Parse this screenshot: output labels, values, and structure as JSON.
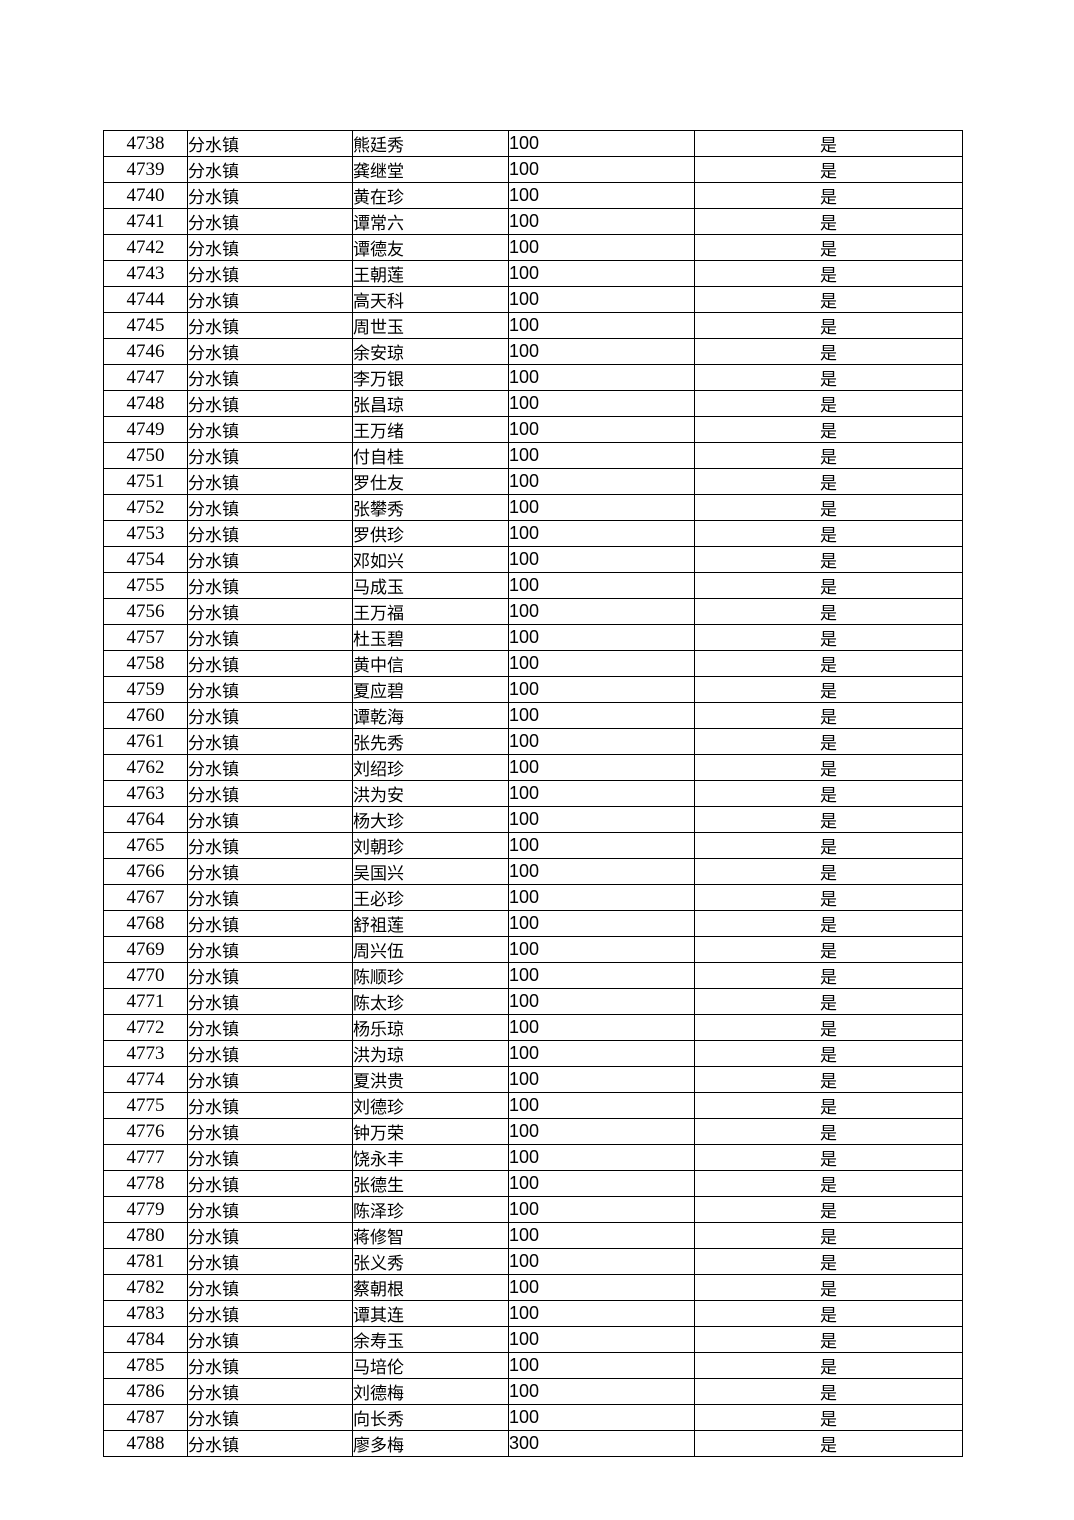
{
  "page": {
    "background_color": "#ffffff",
    "border_color": "#000000",
    "text_color": "#000000"
  },
  "table": {
    "rows": [
      {
        "id": "4738",
        "town": "分水镇",
        "name": "熊廷秀",
        "amount": "100",
        "confirmed": "是"
      },
      {
        "id": "4739",
        "town": "分水镇",
        "name": "龚继堂",
        "amount": "100",
        "confirmed": "是"
      },
      {
        "id": "4740",
        "town": "分水镇",
        "name": "黄在珍",
        "amount": "100",
        "confirmed": "是"
      },
      {
        "id": "4741",
        "town": "分水镇",
        "name": "谭常六",
        "amount": "100",
        "confirmed": "是"
      },
      {
        "id": "4742",
        "town": "分水镇",
        "name": "谭德友",
        "amount": "100",
        "confirmed": "是"
      },
      {
        "id": "4743",
        "town": "分水镇",
        "name": "王朝莲",
        "amount": "100",
        "confirmed": "是"
      },
      {
        "id": "4744",
        "town": "分水镇",
        "name": "高天科",
        "amount": "100",
        "confirmed": "是"
      },
      {
        "id": "4745",
        "town": "分水镇",
        "name": "周世玉",
        "amount": "100",
        "confirmed": "是"
      },
      {
        "id": "4746",
        "town": "分水镇",
        "name": "余安琼",
        "amount": "100",
        "confirmed": "是"
      },
      {
        "id": "4747",
        "town": "分水镇",
        "name": "李万银",
        "amount": "100",
        "confirmed": "是"
      },
      {
        "id": "4748",
        "town": "分水镇",
        "name": "张昌琼",
        "amount": "100",
        "confirmed": "是"
      },
      {
        "id": "4749",
        "town": "分水镇",
        "name": "王万绪",
        "amount": "100",
        "confirmed": "是"
      },
      {
        "id": "4750",
        "town": "分水镇",
        "name": "付自桂",
        "amount": "100",
        "confirmed": "是"
      },
      {
        "id": "4751",
        "town": "分水镇",
        "name": "罗仕友",
        "amount": "100",
        "confirmed": "是"
      },
      {
        "id": "4752",
        "town": "分水镇",
        "name": "张攀秀",
        "amount": "100",
        "confirmed": "是"
      },
      {
        "id": "4753",
        "town": "分水镇",
        "name": "罗供珍",
        "amount": "100",
        "confirmed": "是"
      },
      {
        "id": "4754",
        "town": "分水镇",
        "name": "邓如兴",
        "amount": "100",
        "confirmed": "是"
      },
      {
        "id": "4755",
        "town": "分水镇",
        "name": "马成玉",
        "amount": "100",
        "confirmed": "是"
      },
      {
        "id": "4756",
        "town": "分水镇",
        "name": "王万福",
        "amount": "100",
        "confirmed": "是"
      },
      {
        "id": "4757",
        "town": "分水镇",
        "name": "杜玉碧",
        "amount": "100",
        "confirmed": "是"
      },
      {
        "id": "4758",
        "town": "分水镇",
        "name": "黄中信",
        "amount": "100",
        "confirmed": "是"
      },
      {
        "id": "4759",
        "town": "分水镇",
        "name": "夏应碧",
        "amount": "100",
        "confirmed": "是"
      },
      {
        "id": "4760",
        "town": "分水镇",
        "name": "谭乾海",
        "amount": "100",
        "confirmed": "是"
      },
      {
        "id": "4761",
        "town": "分水镇",
        "name": "张先秀",
        "amount": "100",
        "confirmed": "是"
      },
      {
        "id": "4762",
        "town": "分水镇",
        "name": "刘绍珍",
        "amount": "100",
        "confirmed": "是"
      },
      {
        "id": "4763",
        "town": "分水镇",
        "name": "洪为安",
        "amount": "100",
        "confirmed": "是"
      },
      {
        "id": "4764",
        "town": "分水镇",
        "name": "杨大珍",
        "amount": "100",
        "confirmed": "是"
      },
      {
        "id": "4765",
        "town": "分水镇",
        "name": "刘朝珍",
        "amount": "100",
        "confirmed": "是"
      },
      {
        "id": "4766",
        "town": "分水镇",
        "name": "吴国兴",
        "amount": "100",
        "confirmed": "是"
      },
      {
        "id": "4767",
        "town": "分水镇",
        "name": "王必珍",
        "amount": "100",
        "confirmed": "是"
      },
      {
        "id": "4768",
        "town": "分水镇",
        "name": "舒祖莲",
        "amount": "100",
        "confirmed": "是"
      },
      {
        "id": "4769",
        "town": "分水镇",
        "name": "周兴伍",
        "amount": "100",
        "confirmed": "是"
      },
      {
        "id": "4770",
        "town": "分水镇",
        "name": "陈顺珍",
        "amount": "100",
        "confirmed": "是"
      },
      {
        "id": "4771",
        "town": "分水镇",
        "name": "陈太珍",
        "amount": "100",
        "confirmed": "是"
      },
      {
        "id": "4772",
        "town": "分水镇",
        "name": "杨乐琼",
        "amount": "100",
        "confirmed": "是"
      },
      {
        "id": "4773",
        "town": "分水镇",
        "name": "洪为琼",
        "amount": "100",
        "confirmed": "是"
      },
      {
        "id": "4774",
        "town": "分水镇",
        "name": "夏洪贵",
        "amount": "100",
        "confirmed": "是"
      },
      {
        "id": "4775",
        "town": "分水镇",
        "name": "刘德珍",
        "amount": "100",
        "confirmed": "是"
      },
      {
        "id": "4776",
        "town": "分水镇",
        "name": "钟万荣",
        "amount": "100",
        "confirmed": "是"
      },
      {
        "id": "4777",
        "town": "分水镇",
        "name": "饶永丰",
        "amount": "100",
        "confirmed": "是"
      },
      {
        "id": "4778",
        "town": "分水镇",
        "name": "张德生",
        "amount": "100",
        "confirmed": "是"
      },
      {
        "id": "4779",
        "town": "分水镇",
        "name": "陈泽珍",
        "amount": "100",
        "confirmed": "是"
      },
      {
        "id": "4780",
        "town": "分水镇",
        "name": "蒋修智",
        "amount": "100",
        "confirmed": "是"
      },
      {
        "id": "4781",
        "town": "分水镇",
        "name": "张义秀",
        "amount": "100",
        "confirmed": "是"
      },
      {
        "id": "4782",
        "town": "分水镇",
        "name": "蔡朝根",
        "amount": "100",
        "confirmed": "是"
      },
      {
        "id": "4783",
        "town": "分水镇",
        "name": "谭其连",
        "amount": "100",
        "confirmed": "是"
      },
      {
        "id": "4784",
        "town": "分水镇",
        "name": "余寿玉",
        "amount": "100",
        "confirmed": "是"
      },
      {
        "id": "4785",
        "town": "分水镇",
        "name": "马培伦",
        "amount": "100",
        "confirmed": "是"
      },
      {
        "id": "4786",
        "town": "分水镇",
        "name": "刘德梅",
        "amount": "100",
        "confirmed": "是"
      },
      {
        "id": "4787",
        "town": "分水镇",
        "name": "向长秀",
        "amount": "100",
        "confirmed": "是"
      },
      {
        "id": "4788",
        "town": "分水镇",
        "name": "廖多梅",
        "amount": "300",
        "confirmed": "是"
      }
    ]
  }
}
